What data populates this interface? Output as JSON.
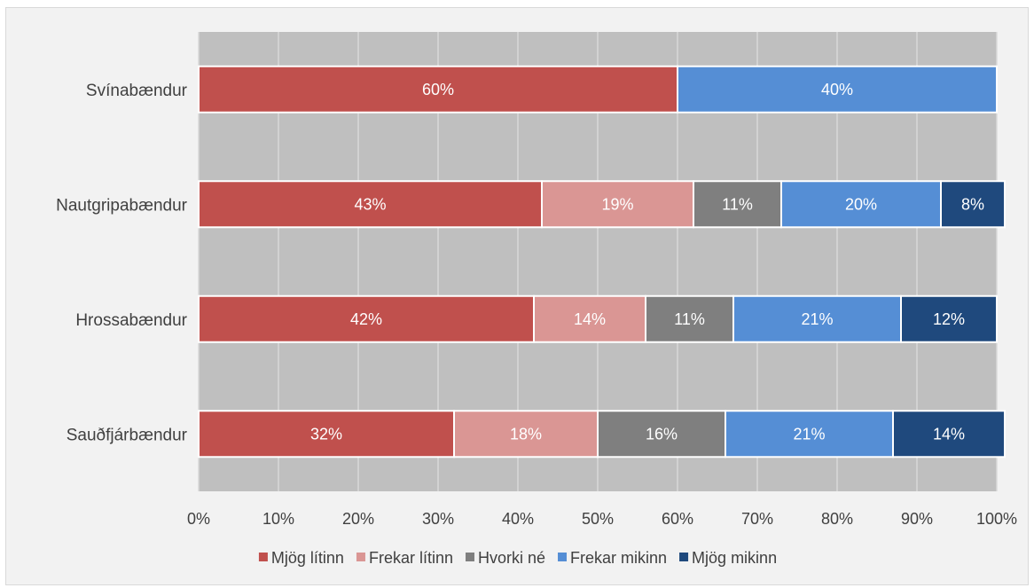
{
  "chart_data": {
    "type": "bar",
    "orientation": "horizontal",
    "stacked": true,
    "categories": [
      "Svínabændur",
      "Nautgripabændur",
      "Hrossabændur",
      "Sauðfjárbændur"
    ],
    "series": [
      {
        "name": "Mjög lítinn",
        "color": "#c0504d",
        "values": [
          60,
          43,
          42,
          32
        ],
        "labels": [
          "60%",
          "43%",
          "42%",
          "32%"
        ]
      },
      {
        "name": "Frekar lítinn",
        "color": "#da9694",
        "values": [
          0,
          19,
          14,
          18
        ],
        "labels": [
          "",
          "19%",
          "14%",
          "18%"
        ]
      },
      {
        "name": "Hvorki né",
        "color": "#7f7f7f",
        "values": [
          0,
          11,
          11,
          16
        ],
        "labels": [
          "",
          "11%",
          "11%",
          "16%"
        ]
      },
      {
        "name": "Frekar mikinn",
        "color": "#558ed5",
        "values": [
          40,
          20,
          21,
          21
        ],
        "labels": [
          "40%",
          "20%",
          "21%",
          "21%"
        ]
      },
      {
        "name": "Mjög mikinn",
        "color": "#1f497d",
        "values": [
          0,
          8,
          12,
          14
        ],
        "labels": [
          "",
          "8%",
          "12%",
          "14%"
        ]
      }
    ],
    "xlim": [
      0,
      100
    ],
    "x_ticks": [
      "0%",
      "10%",
      "20%",
      "30%",
      "40%",
      "50%",
      "60%",
      "70%",
      "80%",
      "90%",
      "100%"
    ],
    "grid": true,
    "plot_background": "#bfbfbf",
    "legend_position": "bottom"
  }
}
